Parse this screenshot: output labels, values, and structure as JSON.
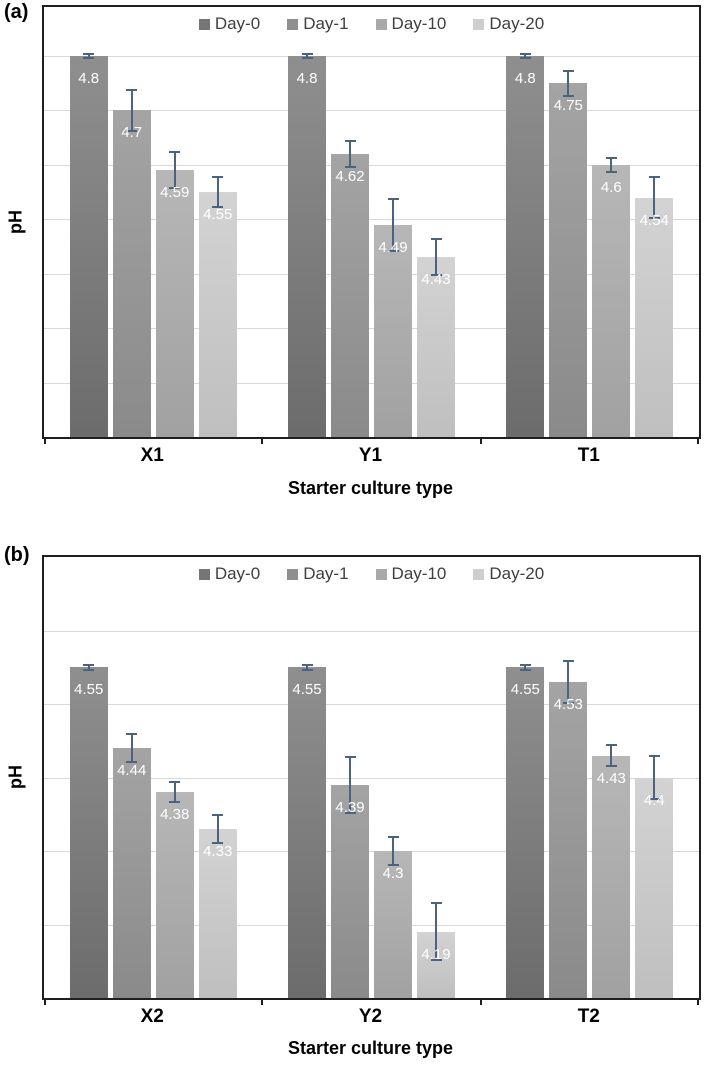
{
  "panels": [
    {
      "label": "(a)"
    },
    {
      "label": "(b)"
    }
  ],
  "chart_data": [
    {
      "type": "bar",
      "panel": "a",
      "categories": [
        "X1",
        "Y1",
        "T1"
      ],
      "series": [
        {
          "name": "Day-0",
          "values": [
            4.8,
            4.8,
            4.8
          ],
          "errors": [
            0.005,
            0.005,
            0.005
          ],
          "color_top": "#8f8f8f",
          "color_bottom": "#6c6c6c",
          "legend_color": "#767676"
        },
        {
          "name": "Day-1",
          "values": [
            4.7,
            4.62,
            4.75
          ],
          "errors": [
            0.04,
            0.025,
            0.025
          ],
          "color_top": "#a4a4a4",
          "color_bottom": "#8a8a8a",
          "legend_color": "#8f8f8f"
        },
        {
          "name": "Day-10",
          "values": [
            4.59,
            4.49,
            4.6
          ],
          "errors": [
            0.035,
            0.05,
            0.015
          ],
          "color_top": "#b7b7b7",
          "color_bottom": "#a1a1a1",
          "legend_color": "#a9a9a9"
        },
        {
          "name": "Day-20",
          "values": [
            4.55,
            4.43,
            4.54
          ],
          "errors": [
            0.03,
            0.035,
            0.04
          ],
          "color_top": "#d3d3d3",
          "color_bottom": "#bfbfbf",
          "legend_color": "#cecece"
        }
      ],
      "xlabel": "Starter culture type",
      "ylabel": "pH",
      "ylim": [
        4.1,
        4.89
      ],
      "gridline_step": 0.1,
      "grid": true,
      "legend_position": "top-center",
      "colors": {
        "gridline": "#d9d9d9",
        "axis": "#1f1f1f",
        "error_bar": "#4a6480",
        "data_label": "#ffffff",
        "legend_text": "#3f3f3f"
      }
    },
    {
      "type": "bar",
      "panel": "b",
      "categories": [
        "X2",
        "Y2",
        "T2"
      ],
      "series": [
        {
          "name": "Day-0",
          "values": [
            4.55,
            4.55,
            4.55
          ],
          "errors": [
            0.005,
            0.005,
            0.005
          ],
          "color_top": "#8f8f8f",
          "color_bottom": "#6c6c6c",
          "legend_color": "#767676"
        },
        {
          "name": "Day-1",
          "values": [
            4.44,
            4.39,
            4.53
          ],
          "errors": [
            0.02,
            0.04,
            0.03
          ],
          "color_top": "#a4a4a4",
          "color_bottom": "#8a8a8a",
          "legend_color": "#8f8f8f"
        },
        {
          "name": "Day-10",
          "values": [
            4.38,
            4.3,
            4.43
          ],
          "errors": [
            0.015,
            0.02,
            0.015
          ],
          "color_top": "#b7b7b7",
          "color_bottom": "#a1a1a1",
          "legend_color": "#a9a9a9"
        },
        {
          "name": "Day-20",
          "values": [
            4.33,
            4.19,
            4.4
          ],
          "errors": [
            0.02,
            0.04,
            0.03
          ],
          "color_top": "#d3d3d3",
          "color_bottom": "#bfbfbf",
          "legend_color": "#cecece"
        }
      ],
      "xlabel": "Starter culture type",
      "ylabel": "pH",
      "ylim": [
        4.1,
        4.7
      ],
      "gridline_step": 0.1,
      "grid": true,
      "legend_position": "top-center",
      "colors": {
        "gridline": "#d9d9d9",
        "axis": "#1f1f1f",
        "error_bar": "#4a6480",
        "data_label": "#ffffff",
        "legend_text": "#3f3f3f"
      }
    }
  ]
}
